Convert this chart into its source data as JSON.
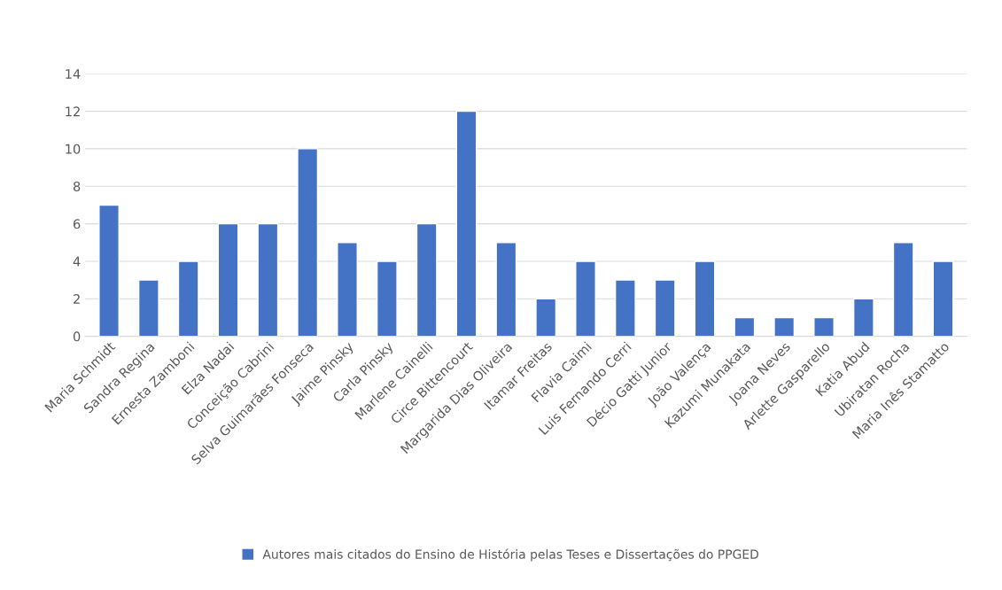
{
  "chart_data": {
    "type": "bar",
    "categories": [
      "Maria Schmidt",
      "Sandra Regina",
      "Ernesta Zamboni",
      "Elza Nadai",
      "Conceição Cabrini",
      "Selva Guimarães Fonseca",
      "Jaime Pinsky",
      "Carla Pinsky",
      "Marlene Cainelli",
      "Circe Bittencourt",
      "Margarida Dias Oliveira",
      "Itamar Freitas",
      "Flavia Caimi",
      "Luis Fernando Cerri",
      "Décio Gatti Junior",
      "João Valença",
      "Kazumi Munakata",
      "Joana Neves",
      "Arlette Gasparello",
      "Katia Abud",
      "Ubiratan Rocha",
      "Maria Inês Stamatto"
    ],
    "series": [
      {
        "name": "Autores mais citados do Ensino de História pelas Teses e Dissertações do PPGED",
        "color": "#4472c4",
        "values": [
          7,
          3,
          4,
          6,
          6,
          10,
          5,
          4,
          6,
          12,
          5,
          2,
          4,
          3,
          3,
          4,
          1,
          1,
          1,
          2,
          5,
          4
        ]
      }
    ],
    "ylim": [
      0,
      14
    ],
    "yticks": [
      0,
      2,
      4,
      6,
      8,
      10,
      12,
      14
    ],
    "grid": "y",
    "legend": "bottom"
  }
}
